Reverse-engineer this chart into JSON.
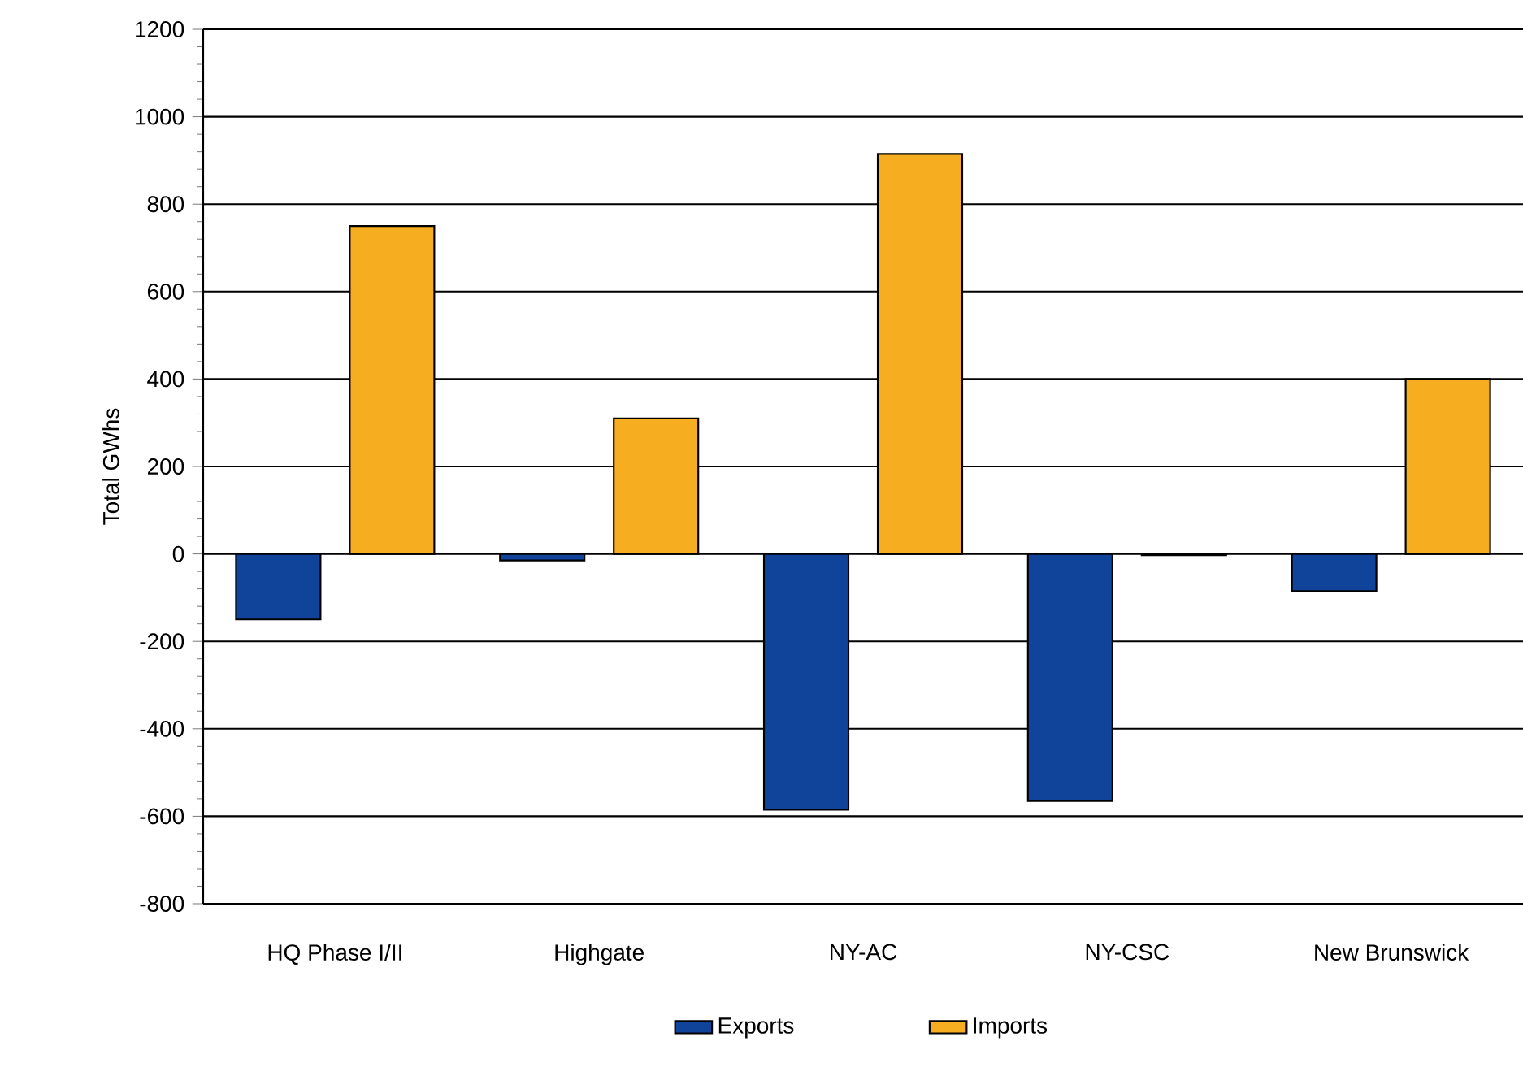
{
  "chart_data": {
    "type": "bar",
    "ylabel": "Total GWhs",
    "categories": [
      "HQ Phase I/II",
      "Highgate",
      "NY-AC",
      "NY-CSC",
      "New Brunswick"
    ],
    "series": [
      {
        "name": "Exports",
        "color": "#10449a",
        "values": [
          -150,
          -15,
          -585,
          -565,
          -85
        ]
      },
      {
        "name": "Imports",
        "color": "#f6ad1f",
        "values": [
          750,
          310,
          915,
          -3,
          400
        ]
      }
    ],
    "ylim": [
      -800,
      1200
    ],
    "yticks": [
      -800,
      -600,
      -400,
      -200,
      0,
      200,
      400,
      600,
      800,
      1000,
      1200
    ],
    "grid": "y",
    "legend": "bottom"
  }
}
